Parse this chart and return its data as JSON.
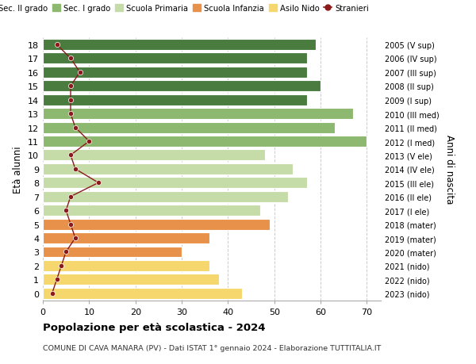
{
  "ages": [
    0,
    1,
    2,
    3,
    4,
    5,
    6,
    7,
    8,
    9,
    10,
    11,
    12,
    13,
    14,
    15,
    16,
    17,
    18
  ],
  "bar_values": [
    43,
    38,
    36,
    30,
    36,
    49,
    47,
    53,
    57,
    54,
    48,
    70,
    63,
    67,
    57,
    60,
    57,
    57,
    59
  ],
  "stranieri": [
    2,
    3,
    4,
    5,
    7,
    6,
    5,
    6,
    12,
    7,
    6,
    10,
    7,
    6,
    6,
    6,
    8,
    6,
    3
  ],
  "right_labels": [
    "2023 (nido)",
    "2022 (nido)",
    "2021 (nido)",
    "2020 (mater)",
    "2019 (mater)",
    "2018 (mater)",
    "2017 (I ele)",
    "2016 (II ele)",
    "2015 (III ele)",
    "2014 (IV ele)",
    "2013 (V ele)",
    "2012 (I med)",
    "2011 (II med)",
    "2010 (III med)",
    "2009 (I sup)",
    "2008 (II sup)",
    "2007 (III sup)",
    "2006 (IV sup)",
    "2005 (V sup)"
  ],
  "bar_colors": [
    "#f5d76e",
    "#f5d76e",
    "#f5d76e",
    "#e8914a",
    "#e8914a",
    "#e8914a",
    "#c5dba8",
    "#c5dba8",
    "#c5dba8",
    "#c5dba8",
    "#c5dba8",
    "#8cb870",
    "#8cb870",
    "#8cb870",
    "#4a7c40",
    "#4a7c40",
    "#4a7c40",
    "#4a7c40",
    "#4a7c40"
  ],
  "legend_labels": [
    "Sec. II grado",
    "Sec. I grado",
    "Scuola Primaria",
    "Scuola Infanzia",
    "Asilo Nido",
    "Stranieri"
  ],
  "legend_colors": [
    "#4a7c40",
    "#8cb870",
    "#c5dba8",
    "#e8914a",
    "#f5d76e",
    "#8b1a1a"
  ],
  "stranieri_color": "#8b1a1a",
  "ylabel_left": "Età alunni",
  "ylabel_right": "Anni di nascita",
  "title": "Popolazione per età scolastica - 2024",
  "subtitle": "COMUNE DI CAVA MANARA (PV) - Dati ISTAT 1° gennaio 2024 - Elaborazione TUTTITALIA.IT",
  "xlim": [
    0,
    73
  ],
  "xticks": [
    0,
    10,
    20,
    30,
    40,
    50,
    60,
    70
  ],
  "bg_color": "#ffffff",
  "grid_color": "#cccccc"
}
